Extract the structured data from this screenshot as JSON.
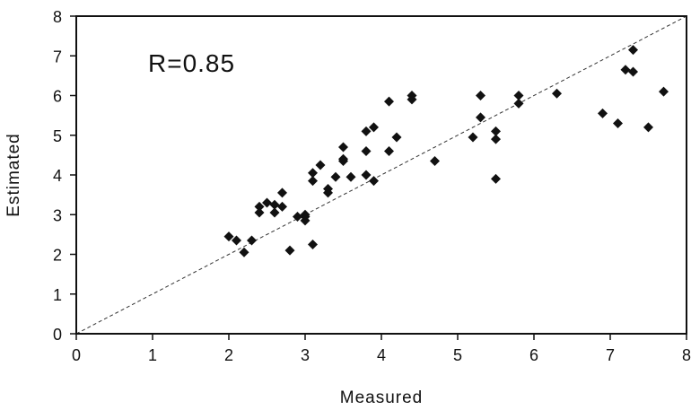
{
  "chart_data": {
    "type": "scatter",
    "xlabel": "Measured",
    "ylabel": "Estimated",
    "xlim": [
      0,
      8
    ],
    "ylim": [
      0,
      8
    ],
    "xticks": [
      "0",
      "1",
      "2",
      "3",
      "4",
      "5",
      "6",
      "7",
      "8"
    ],
    "yticks": [
      "0",
      "1",
      "2",
      "3",
      "4",
      "5",
      "6",
      "7",
      "8"
    ],
    "annotation": "R=0.85",
    "grid": false,
    "legend": "none",
    "reference_line": {
      "style": "dashed",
      "from": [
        0,
        0
      ],
      "to": [
        8,
        8
      ]
    },
    "marker": "diamond",
    "colors": {
      "marker": "#111111",
      "axis": "#111111",
      "reference_line": "#333333"
    },
    "series": [
      {
        "x": [
          2.0,
          2.1,
          2.2,
          2.3,
          2.4,
          2.4,
          2.5,
          2.6,
          2.6,
          2.7,
          2.7,
          2.8,
          2.9,
          3.0,
          3.0,
          3.0,
          3.1,
          3.1,
          3.1,
          3.2,
          3.3,
          3.3,
          3.4,
          3.5,
          3.5,
          3.5,
          3.6,
          3.8,
          3.8,
          3.8,
          3.9,
          3.9,
          4.1,
          4.1,
          4.2,
          4.4,
          4.4,
          4.7,
          5.2,
          5.3,
          5.3,
          5.5,
          5.5,
          5.5,
          5.8,
          5.8,
          6.3,
          6.9,
          7.1,
          7.2,
          7.3,
          7.3,
          7.5,
          7.7
        ],
        "y": [
          2.45,
          2.35,
          2.05,
          2.35,
          3.05,
          3.2,
          3.3,
          3.05,
          3.25,
          3.2,
          3.55,
          2.1,
          2.95,
          2.85,
          2.95,
          3.0,
          2.25,
          3.85,
          4.05,
          4.25,
          3.55,
          3.65,
          3.95,
          4.35,
          4.4,
          4.7,
          3.95,
          4.0,
          4.6,
          5.1,
          3.85,
          5.2,
          4.6,
          5.85,
          4.95,
          5.9,
          6.0,
          4.35,
          4.95,
          5.45,
          6.0,
          3.9,
          4.9,
          5.1,
          5.8,
          6.0,
          6.05,
          5.55,
          5.3,
          6.65,
          6.6,
          7.15,
          5.2,
          6.1
        ]
      }
    ]
  }
}
